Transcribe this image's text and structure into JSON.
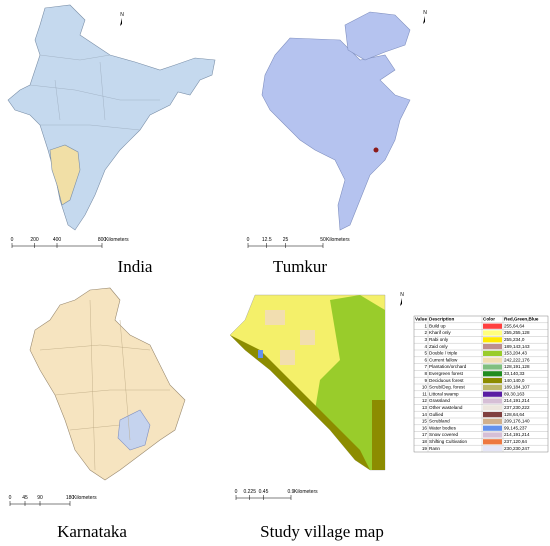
{
  "panels": [
    {
      "label": "India",
      "north": "N",
      "scale": {
        "ticks": [
          0,
          200,
          400,
          800
        ],
        "unit": "Kilometers"
      }
    },
    {
      "label": "Tumkur",
      "north": "N",
      "scale": {
        "ticks": [
          0,
          12.5,
          25,
          50
        ],
        "unit": "Kilometers"
      }
    },
    {
      "label": "Karnataka",
      "scale": {
        "ticks": [
          0,
          45,
          90,
          180
        ],
        "unit": "Kilometers"
      }
    },
    {
      "label": "Study village map",
      "north": "N",
      "scale": {
        "ticks": [
          0,
          0.225,
          0.45,
          0.9
        ],
        "unit": "Kilometers"
      }
    }
  ],
  "legend": {
    "header": [
      "Value",
      "Description",
      "Color",
      "Red,Green,Blue"
    ],
    "rows": [
      [
        1,
        "Build up",
        "255,64,64"
      ],
      [
        2,
        "Kharif only",
        "255,255,128"
      ],
      [
        3,
        "Rabi only",
        "255,234,0"
      ],
      [
        4,
        "Zaid only",
        "189,143,143"
      ],
      [
        5,
        "Double / triple",
        "153,204,43"
      ],
      [
        6,
        "Current fallow",
        "242,222,176"
      ],
      [
        7,
        "Plantation/orchard",
        "128,191,128"
      ],
      [
        8,
        "Evergreen forest",
        "33,140,33"
      ],
      [
        9,
        "Deciduous forest",
        "140,140,0"
      ],
      [
        10,
        "Scrub/Deg. forest",
        "189,184,107"
      ],
      [
        11,
        "Littoral swamp",
        "89,30,163"
      ],
      [
        12,
        "Grassland",
        "214,191,214"
      ],
      [
        13,
        "Other wasteland",
        "237,230,222"
      ],
      [
        14,
        "Gullied",
        "128,64,64"
      ],
      [
        15,
        "Scrubland",
        "209,176,140"
      ],
      [
        16,
        "Water bodies",
        "99,145,237"
      ],
      [
        17,
        "Snow covered",
        "214,191,214"
      ],
      [
        18,
        "Shifting Cultivation",
        "237,120,64"
      ],
      [
        19,
        "Rann",
        "230,230,247"
      ]
    ]
  }
}
